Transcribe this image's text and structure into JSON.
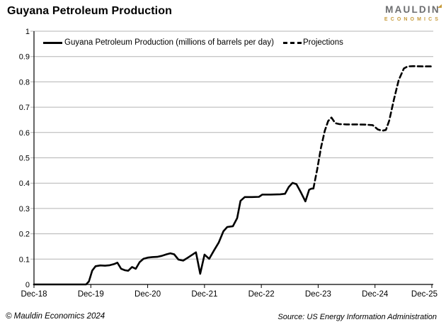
{
  "header": {
    "title": "Guyana Petroleum Production"
  },
  "logo": {
    "name": "MAULDIN",
    "subname": "ECONOMICS",
    "gray": "#6d6e70",
    "gold": "#c79b3b"
  },
  "legend": {
    "items": [
      {
        "label": "Guyana Petroleum Production (millions of barrels per day)",
        "style": "solid"
      },
      {
        "label": "Projections",
        "style": "dashed"
      }
    ]
  },
  "footer": {
    "copyright": "© Mauldin Economics 2024",
    "source": "Source: US Energy Information Administration"
  },
  "chart_data": {
    "type": "line",
    "title": "Guyana Petroleum Production",
    "xlabel": "",
    "ylabel": "",
    "x_unit": "months since Dec-2018",
    "xlim": [
      0,
      84
    ],
    "ylim": [
      0,
      1
    ],
    "grid": "horizontal-gray",
    "legend_position": "top-left-inside",
    "x_ticks": {
      "labels": [
        "Dec-18",
        "Dec-19",
        "Dec-20",
        "Dec-21",
        "Dec-22",
        "Dec-23",
        "Dec-24",
        "Dec-25"
      ],
      "positions": [
        0,
        12,
        24,
        36,
        48,
        60,
        72,
        84
      ]
    },
    "y_ticks": {
      "labels": [
        "0",
        "0.1",
        "0.2",
        "0.3",
        "0.4",
        "0.5",
        "0.6",
        "0.7",
        "0.8",
        "0.9",
        "1"
      ],
      "positions": [
        0,
        0.1,
        0.2,
        0.3,
        0.4,
        0.5,
        0.6,
        0.7,
        0.8,
        0.9,
        1
      ]
    },
    "series": [
      {
        "name": "Guyana Petroleum Production (millions of barrels per day)",
        "style": "solid",
        "color": "#000000",
        "points": [
          [
            0,
            0
          ],
          [
            3,
            0
          ],
          [
            6,
            0
          ],
          [
            9,
            0
          ],
          [
            11,
            0
          ],
          [
            11.6,
            0.012
          ],
          [
            12.3,
            0.055
          ],
          [
            13,
            0.072
          ],
          [
            14,
            0.075
          ],
          [
            15,
            0.074
          ],
          [
            16,
            0.076
          ],
          [
            17,
            0.081
          ],
          [
            17.6,
            0.086
          ],
          [
            18.4,
            0.062
          ],
          [
            19.2,
            0.056
          ],
          [
            19.9,
            0.054
          ],
          [
            20.7,
            0.069
          ],
          [
            21.5,
            0.062
          ],
          [
            22.3,
            0.088
          ],
          [
            23.1,
            0.101
          ],
          [
            24,
            0.106
          ],
          [
            25,
            0.108
          ],
          [
            26,
            0.109
          ],
          [
            27,
            0.113
          ],
          [
            28,
            0.119
          ],
          [
            28.8,
            0.123
          ],
          [
            29.6,
            0.119
          ],
          [
            30.5,
            0.098
          ],
          [
            31.5,
            0.094
          ],
          [
            32.5,
            0.106
          ],
          [
            33.4,
            0.117
          ],
          [
            34.2,
            0.127
          ],
          [
            35.1,
            0.042
          ],
          [
            36,
            0.118
          ],
          [
            37,
            0.101
          ],
          [
            38,
            0.134
          ],
          [
            39,
            0.165
          ],
          [
            40,
            0.21
          ],
          [
            40.8,
            0.227
          ],
          [
            42,
            0.23
          ],
          [
            42.9,
            0.262
          ],
          [
            43.6,
            0.33
          ],
          [
            44.5,
            0.345
          ],
          [
            46,
            0.345
          ],
          [
            47.5,
            0.346
          ],
          [
            48.2,
            0.355
          ],
          [
            50,
            0.355
          ],
          [
            52,
            0.356
          ],
          [
            53,
            0.358
          ],
          [
            53.8,
            0.385
          ],
          [
            54.6,
            0.401
          ],
          [
            55.4,
            0.396
          ],
          [
            56.4,
            0.362
          ],
          [
            57.3,
            0.328
          ],
          [
            58.1,
            0.374
          ],
          [
            58.5,
            0.378
          ],
          [
            59,
            0.379
          ]
        ]
      },
      {
        "name": "Projections",
        "style": "dashed",
        "color": "#000000",
        "points": [
          [
            59,
            0.379
          ],
          [
            59.8,
            0.455
          ],
          [
            60.6,
            0.54
          ],
          [
            61.4,
            0.607
          ],
          [
            62.1,
            0.645
          ],
          [
            62.8,
            0.659
          ],
          [
            63.6,
            0.637
          ],
          [
            64.5,
            0.633
          ],
          [
            66,
            0.632
          ],
          [
            68,
            0.632
          ],
          [
            70,
            0.631
          ],
          [
            71.5,
            0.629
          ],
          [
            72.6,
            0.612
          ],
          [
            73.5,
            0.607
          ],
          [
            74.3,
            0.61
          ],
          [
            75,
            0.647
          ],
          [
            76,
            0.731
          ],
          [
            77,
            0.807
          ],
          [
            78.1,
            0.853
          ],
          [
            78.9,
            0.861
          ],
          [
            80,
            0.862
          ],
          [
            82,
            0.861
          ],
          [
            84,
            0.861
          ]
        ]
      }
    ]
  }
}
